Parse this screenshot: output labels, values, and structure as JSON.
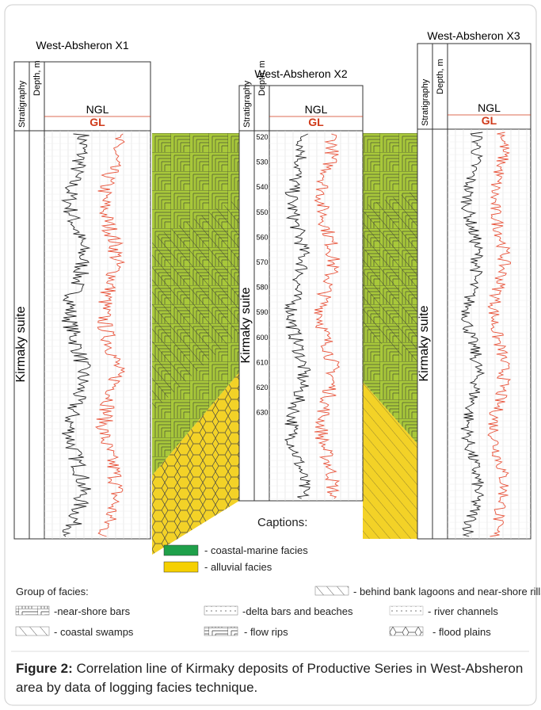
{
  "figure": {
    "wells": [
      {
        "name": "West-Absheron X1",
        "stratigraphy": "Stratigraphy",
        "depth_label": "Depth, m",
        "ngl_label": "NGL",
        "gl_label": "GL",
        "suite": "Kirmaky suite"
      },
      {
        "name": "West-Absheron X2",
        "stratigraphy": "Stratigraphy",
        "depth_label": "Depth, m",
        "ngl_label": "NGL",
        "gl_label": "GL",
        "suite": "Kirmaky suite"
      },
      {
        "name": "West-Absheron X3",
        "stratigraphy": "Stratigraphy",
        "depth_label": "Depth, m",
        "ngl_label": "NGL",
        "gl_label": "GL",
        "suite": "Kirmaky suite"
      }
    ],
    "x2_depths": [
      "520",
      "530",
      "540",
      "550",
      "560",
      "570",
      "580",
      "590",
      "600",
      "610",
      "620",
      "630"
    ],
    "captions": {
      "title": "Captions:",
      "items": [
        "- coastal-marine facies",
        "- alluvial facies"
      ]
    },
    "facies_groups": {
      "title": "Group of facies:",
      "items": [
        "- behind bank lagoons and near-shore rills",
        "-near-shore bars",
        "-delta bars and beaches",
        "- river channels",
        "- coastal swamps",
        "- flow rips",
        "- flood plains"
      ]
    }
  },
  "caption": {
    "label": "Figure 2:",
    "text": "Correlation line of Kirmaky deposits of Productive Series in West-Absheron area by data of logging facies technique."
  }
}
